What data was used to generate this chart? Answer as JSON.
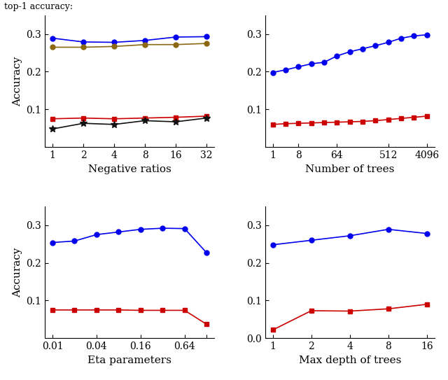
{
  "top_left": {
    "xlabel": "Negative ratios",
    "ylabel": "Accuracy",
    "xtick_labels": [
      "1",
      "2",
      "4",
      "8",
      "16",
      "32"
    ],
    "ylim": [
      0,
      0.35
    ],
    "yticks": [
      0.1,
      0.2,
      0.3
    ],
    "series": [
      {
        "color": "#0000EE",
        "marker": "o",
        "markersize": 5,
        "linewidth": 1.2,
        "values": [
          0.289,
          0.279,
          0.278,
          0.283,
          0.292,
          0.293
        ]
      },
      {
        "color": "#8B6914",
        "marker": "o",
        "markersize": 5,
        "linewidth": 1.2,
        "values": [
          0.265,
          0.265,
          0.267,
          0.272,
          0.272,
          0.275
        ]
      },
      {
        "color": "#CC0000",
        "marker": "s",
        "markersize": 5,
        "linewidth": 1.2,
        "values": [
          0.075,
          0.077,
          0.075,
          0.077,
          0.079,
          0.082
        ]
      },
      {
        "color": "#111111",
        "marker": "*",
        "markersize": 7,
        "linewidth": 1.2,
        "values": [
          0.048,
          0.063,
          0.06,
          0.07,
          0.067,
          0.077
        ]
      }
    ]
  },
  "top_right": {
    "xlabel": "Number of trees",
    "ylim": [
      0,
      0.35
    ],
    "yticks": [
      0.1,
      0.2,
      0.3
    ],
    "xtick_positions": [
      0,
      1,
      2,
      3,
      4,
      5,
      6,
      7,
      8,
      9,
      10,
      11,
      12
    ],
    "xtick_labels_pos": [
      0,
      2,
      5,
      9,
      12
    ],
    "xtick_labels": [
      "1",
      "8",
      "64",
      "512",
      "4096"
    ],
    "series": [
      {
        "color": "#0000EE",
        "marker": "o",
        "markersize": 5,
        "linewidth": 1.2,
        "values": [
          0.198,
          0.205,
          0.213,
          0.221,
          0.225,
          0.242,
          0.253,
          0.261,
          0.269,
          0.278,
          0.289,
          0.295,
          0.298
        ]
      },
      {
        "color": "#CC0000",
        "marker": "s",
        "markersize": 5,
        "linewidth": 1.2,
        "values": [
          0.06,
          0.062,
          0.063,
          0.064,
          0.065,
          0.066,
          0.067,
          0.068,
          0.07,
          0.073,
          0.076,
          0.079,
          0.082
        ]
      }
    ]
  },
  "bottom_left": {
    "xlabel": "Eta parameters",
    "ylabel": "Accuracy",
    "ylim": [
      0,
      0.35
    ],
    "yticks": [
      0.1,
      0.2,
      0.3
    ],
    "xtick_positions": [
      0,
      1,
      2,
      3,
      4,
      5,
      6,
      7
    ],
    "xtick_labels_pos": [
      0,
      2,
      4,
      6,
      7
    ],
    "xtick_labels": [
      "0.01",
      "0.04",
      "0.16",
      "0.64",
      ""
    ],
    "series": [
      {
        "color": "#0000EE",
        "marker": "o",
        "markersize": 5,
        "linewidth": 1.2,
        "values": [
          0.254,
          0.258,
          0.275,
          0.282,
          0.289,
          0.292,
          0.291,
          0.227
        ]
      },
      {
        "color": "#CC0000",
        "marker": "s",
        "markersize": 5,
        "linewidth": 1.2,
        "values": [
          0.075,
          0.075,
          0.075,
          0.075,
          0.074,
          0.074,
          0.074,
          0.037
        ]
      }
    ]
  },
  "bottom_right": {
    "xlabel": "Max depth of trees",
    "ylim": [
      0,
      0.35
    ],
    "yticks": [
      0.0,
      0.1,
      0.2,
      0.3
    ],
    "xtick_labels": [
      "1",
      "2",
      "4",
      "8",
      "16"
    ],
    "series": [
      {
        "color": "#0000EE",
        "marker": "o",
        "markersize": 5,
        "linewidth": 1.2,
        "values": [
          0.248,
          0.26,
          0.272,
          0.289,
          0.278
        ]
      },
      {
        "color": "#CC0000",
        "marker": "s",
        "markersize": 5,
        "linewidth": 1.2,
        "values": [
          0.022,
          0.073,
          0.072,
          0.078,
          0.09
        ]
      }
    ]
  },
  "title": "top-1 accuracy:",
  "figsize": [
    6.4,
    5.43
  ],
  "dpi": 100
}
